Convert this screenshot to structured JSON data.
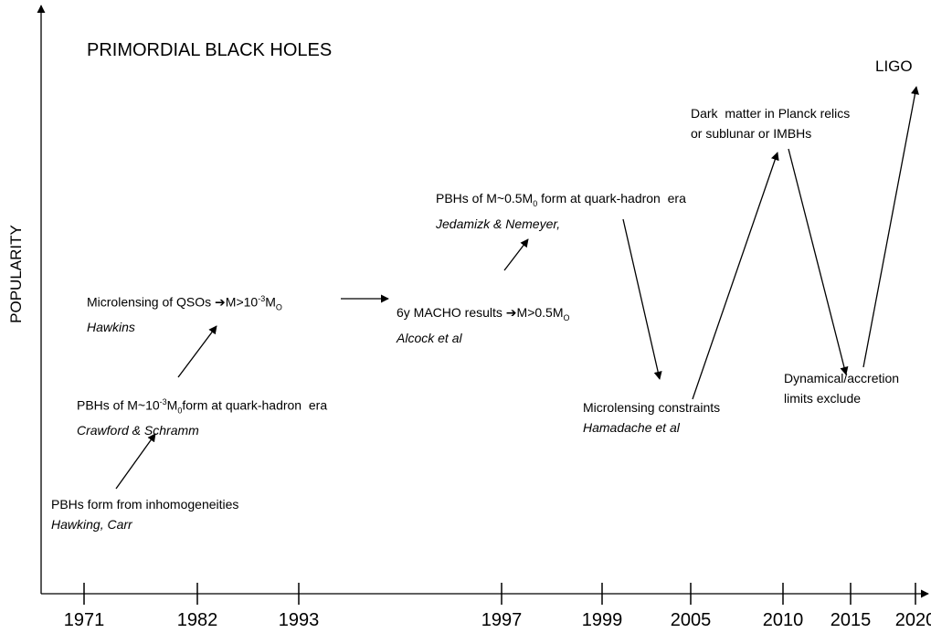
{
  "title": "PRIMORDIAL BLACK HOLES",
  "y_axis_label": "POPULARITY",
  "x_axis_labels": [
    "1971",
    "1982",
    "1993",
    "1997",
    "1999",
    "2005",
    "2010",
    "2015",
    "2020"
  ],
  "events": [
    {
      "lines": [
        [
          "PBHs form from inhomogeneities"
        ]
      ],
      "author": "Hawking, Carr"
    },
    {
      "lines": [
        [
          "PBHs of M~10",
          {
            "sup": "-3"
          },
          "M",
          {
            "sub": "0"
          },
          "form at quark-hadron  era"
        ]
      ],
      "author": "Crawford & Schramm"
    },
    {
      "lines": [
        [
          "Microlensing of QSOs ➔M>10",
          {
            "sup": "-3"
          },
          "M",
          {
            "sub": "O"
          }
        ]
      ],
      "author": "Hawkins"
    },
    {
      "lines": [
        [
          "6y MACHO results ➔M>0.5M",
          {
            "sub": "O"
          }
        ]
      ],
      "author": "Alcock et al"
    },
    {
      "lines": [
        [
          "PBHs of M~0.5M",
          {
            "sub": "0"
          },
          " form at quark-hadron  era"
        ]
      ],
      "author": "Jedamizk & Nemeyer,"
    },
    {
      "lines": [
        [
          "Microlensing constraints"
        ]
      ],
      "author": "Hamadache et al"
    },
    {
      "lines": [
        [
          "Dark  matter in Planck relics"
        ],
        [
          "or sublunar or IMBHs"
        ]
      ]
    },
    {
      "lines": [
        [
          "Dynamical/accretion"
        ],
        [
          "limits exclude"
        ]
      ]
    },
    {
      "lines": [
        [
          "LIGO"
        ]
      ]
    }
  ]
}
